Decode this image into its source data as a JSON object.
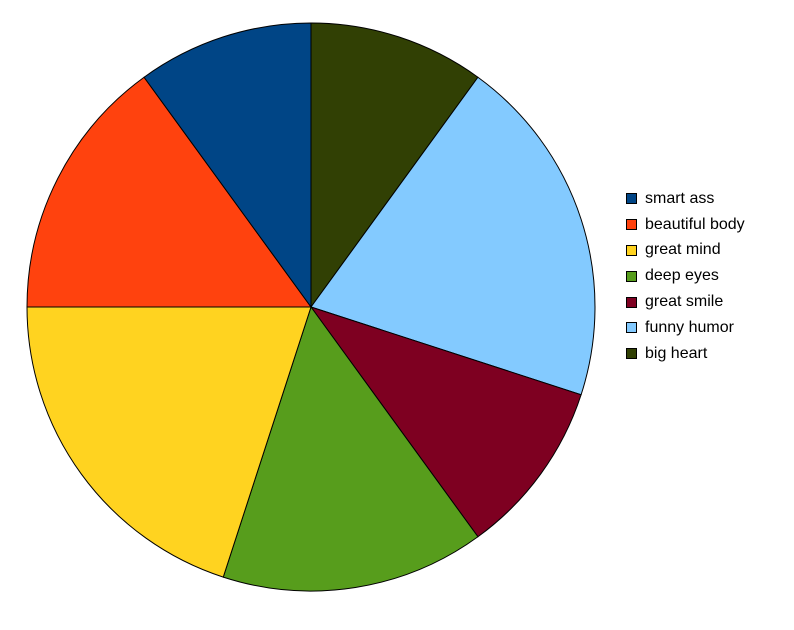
{
  "chart_data": {
    "type": "pie",
    "title": "",
    "start_angle_deg": 0,
    "direction": "clockwise-from-top",
    "legend_position": "right",
    "slices": [
      {
        "label": "big heart",
        "value": 10,
        "color": "#314004"
      },
      {
        "label": "funny humor",
        "value": 20,
        "color": "#83caff"
      },
      {
        "label": "great smile",
        "value": 10,
        "color": "#7e0021"
      },
      {
        "label": "deep eyes",
        "value": 15,
        "color": "#579d1c"
      },
      {
        "label": "great mind",
        "value": 20,
        "color": "#ffd320"
      },
      {
        "label": "beautiful body",
        "value": 15,
        "color": "#ff420e"
      },
      {
        "label": "smart ass",
        "value": 10,
        "color": "#004586"
      }
    ],
    "legend": [
      {
        "label": "smart ass",
        "color": "#004586"
      },
      {
        "label": "beautiful body",
        "color": "#ff420e"
      },
      {
        "label": "great mind",
        "color": "#ffd320"
      },
      {
        "label": "deep eyes",
        "color": "#579d1c"
      },
      {
        "label": "great smile",
        "color": "#7e0021"
      },
      {
        "label": "funny humor",
        "color": "#83caff"
      },
      {
        "label": "big heart",
        "color": "#314004"
      }
    ]
  }
}
